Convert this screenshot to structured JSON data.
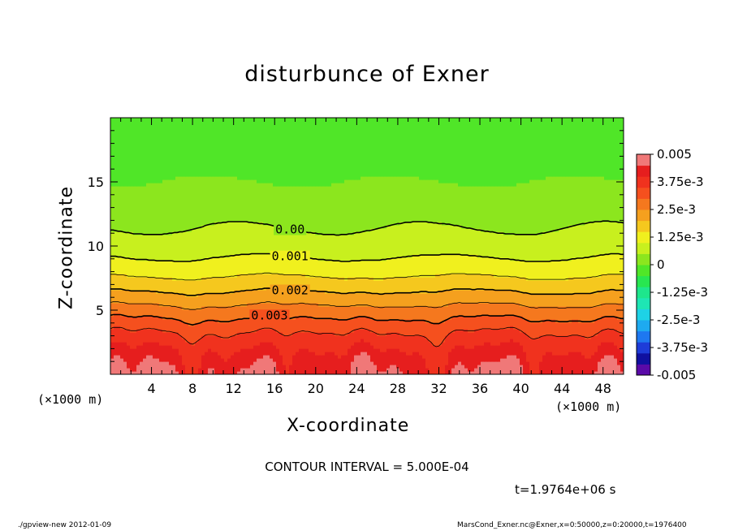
{
  "chart_data": {
    "type": "heatmap",
    "title": "disturbunce of Exner",
    "xlabel": "X-coordinate",
    "ylabel": "Z-coordinate",
    "x_unit": "(×1000 m)",
    "z_unit": "(×1000 m)",
    "xlim": [
      0,
      50
    ],
    "ylim": [
      0,
      20
    ],
    "x_ticks": [
      4,
      8,
      12,
      16,
      20,
      24,
      28,
      32,
      36,
      40,
      44,
      48
    ],
    "y_ticks": [
      5,
      10,
      15
    ],
    "contour_interval_text": "CONTOUR INTERVAL = 5.000E-04",
    "contour_labels": [
      {
        "text": "0.00",
        "value": 0.0005,
        "x": 17.5
      },
      {
        "text": "0.001",
        "value": 0.001,
        "x": 17.5
      },
      {
        "text": "0.002",
        "value": 0.002,
        "x": 17.5
      },
      {
        "text": "0.003",
        "value": 0.003,
        "x": 15.5
      }
    ],
    "colorbar": {
      "range": [
        -0.005,
        0.005
      ],
      "labels": [
        "0.005",
        "3.75e-3",
        "2.5e-3",
        "1.25e-3",
        "0",
        "-1.25e-3",
        "-2.5e-3",
        "-3.75e-3",
        "-0.005"
      ],
      "colors": [
        "#5a0aa8",
        "#1010a0",
        "#1e3cd8",
        "#1e78f0",
        "#1eaaf0",
        "#1ed2e6",
        "#1ee6b4",
        "#1ee68c",
        "#28e650",
        "#50e628",
        "#8ce61e",
        "#c8f01e",
        "#f0f01e",
        "#f5c81e",
        "#f5a01e",
        "#f5781e",
        "#f5501e",
        "#f0321e",
        "#e61e1e",
        "#f07878"
      ]
    },
    "time_text": "t=1.9764e+06 s"
  },
  "footer": {
    "left": "./gpview-new 2012-01-09",
    "right": "MarsCond_Exner.nc@Exner,x=0:50000,z=0:20000,t=1976400"
  }
}
